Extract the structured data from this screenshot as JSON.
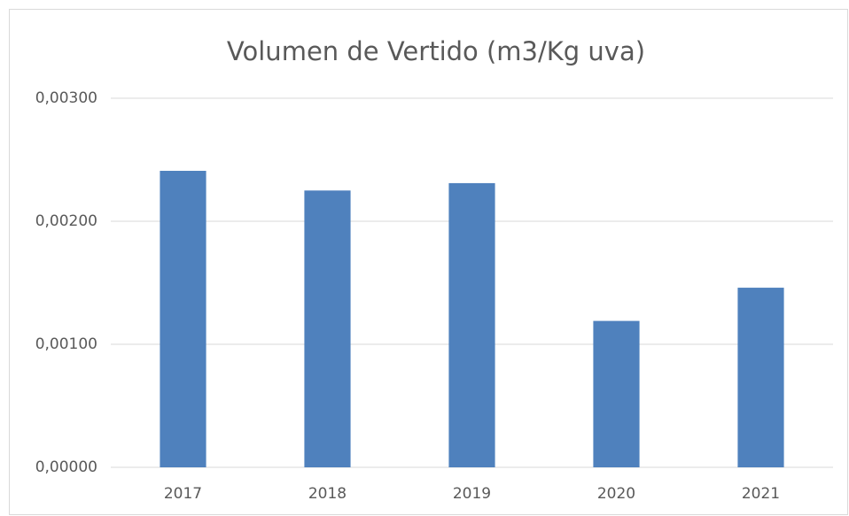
{
  "chart_data": {
    "type": "bar",
    "title": "Volumen de Vertido (m3/Kg uva)",
    "categories": [
      "2017",
      "2018",
      "2019",
      "2020",
      "2021"
    ],
    "values": [
      0.00241,
      0.00225,
      0.00231,
      0.00119,
      0.00146
    ],
    "color": "#4f81bd",
    "ylim": [
      0,
      0.003
    ],
    "yticks": [
      {
        "value": 0,
        "label": "0,00000"
      },
      {
        "value": 0.001,
        "label": "0,00100"
      },
      {
        "value": 0.002,
        "label": "0,00200"
      },
      {
        "value": 0.003,
        "label": "0,00300"
      }
    ],
    "grid": true
  }
}
